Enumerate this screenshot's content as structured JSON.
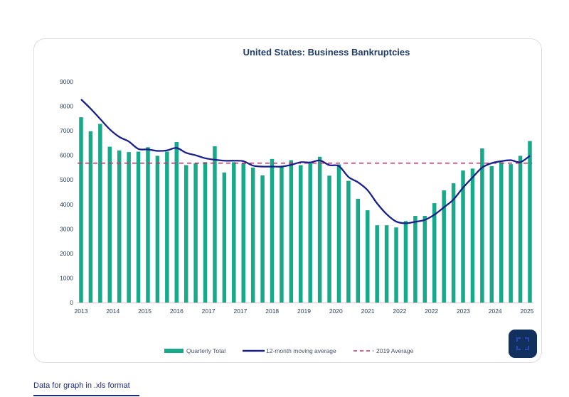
{
  "page": {
    "download_link_label": "Data for graph in .xls format",
    "expand_button_icon": "expand-icon"
  },
  "colors": {
    "bars": "#17a98a",
    "moving_average": "#1a1f8c",
    "reference_line": "#d62a6b",
    "title": "#1f3b66",
    "button": "#12305e"
  },
  "chart_data": {
    "type": "bar",
    "title": "United States: Business Bankruptcies",
    "xlabel": "",
    "ylabel": "",
    "ylim": [
      0,
      9000
    ],
    "yticks": [
      0,
      1000,
      2000,
      3000,
      4000,
      5000,
      6000,
      7000,
      8000,
      9000
    ],
    "grid": false,
    "legend_position": "bottom",
    "xtick_labels": [
      "2013",
      "2014",
      "2015",
      "2016",
      "2017",
      "2017",
      "2018",
      "2019",
      "2020",
      "2021",
      "2022",
      "2022",
      "2023",
      "2024",
      "2025"
    ],
    "series": [
      {
        "name": "Quarterly Total",
        "kind": "bar",
        "values": [
          7550,
          6980,
          7280,
          6350,
          6200,
          6130,
          6150,
          6330,
          5980,
          6150,
          6540,
          5600,
          5680,
          5720,
          6370,
          5300,
          5720,
          5680,
          5500,
          5180,
          5850,
          5570,
          5800,
          5600,
          5680,
          5940,
          5170,
          5630,
          4960,
          4230,
          3760,
          3150,
          3150,
          3060,
          3320,
          3530,
          3530,
          4050,
          4570,
          4860,
          5380,
          5460,
          6280,
          5560,
          5720,
          5640,
          5980,
          6580
        ]
      },
      {
        "name": "12-month moving average",
        "kind": "line",
        "values": [
          8280,
          7900,
          7480,
          7060,
          6750,
          6560,
          6260,
          6240,
          6180,
          6200,
          6300,
          6100,
          6000,
          5880,
          5820,
          5780,
          5780,
          5760,
          5580,
          5540,
          5540,
          5540,
          5610,
          5720,
          5710,
          5790,
          5600,
          5560,
          5120,
          4900,
          4580,
          4040,
          3600,
          3300,
          3230,
          3290,
          3370,
          3580,
          3880,
          4200,
          4680,
          5100,
          5500,
          5680,
          5760,
          5800,
          5720,
          5980
        ]
      },
      {
        "name": "2019 Average",
        "kind": "reference_line",
        "value": 5680
      }
    ]
  }
}
